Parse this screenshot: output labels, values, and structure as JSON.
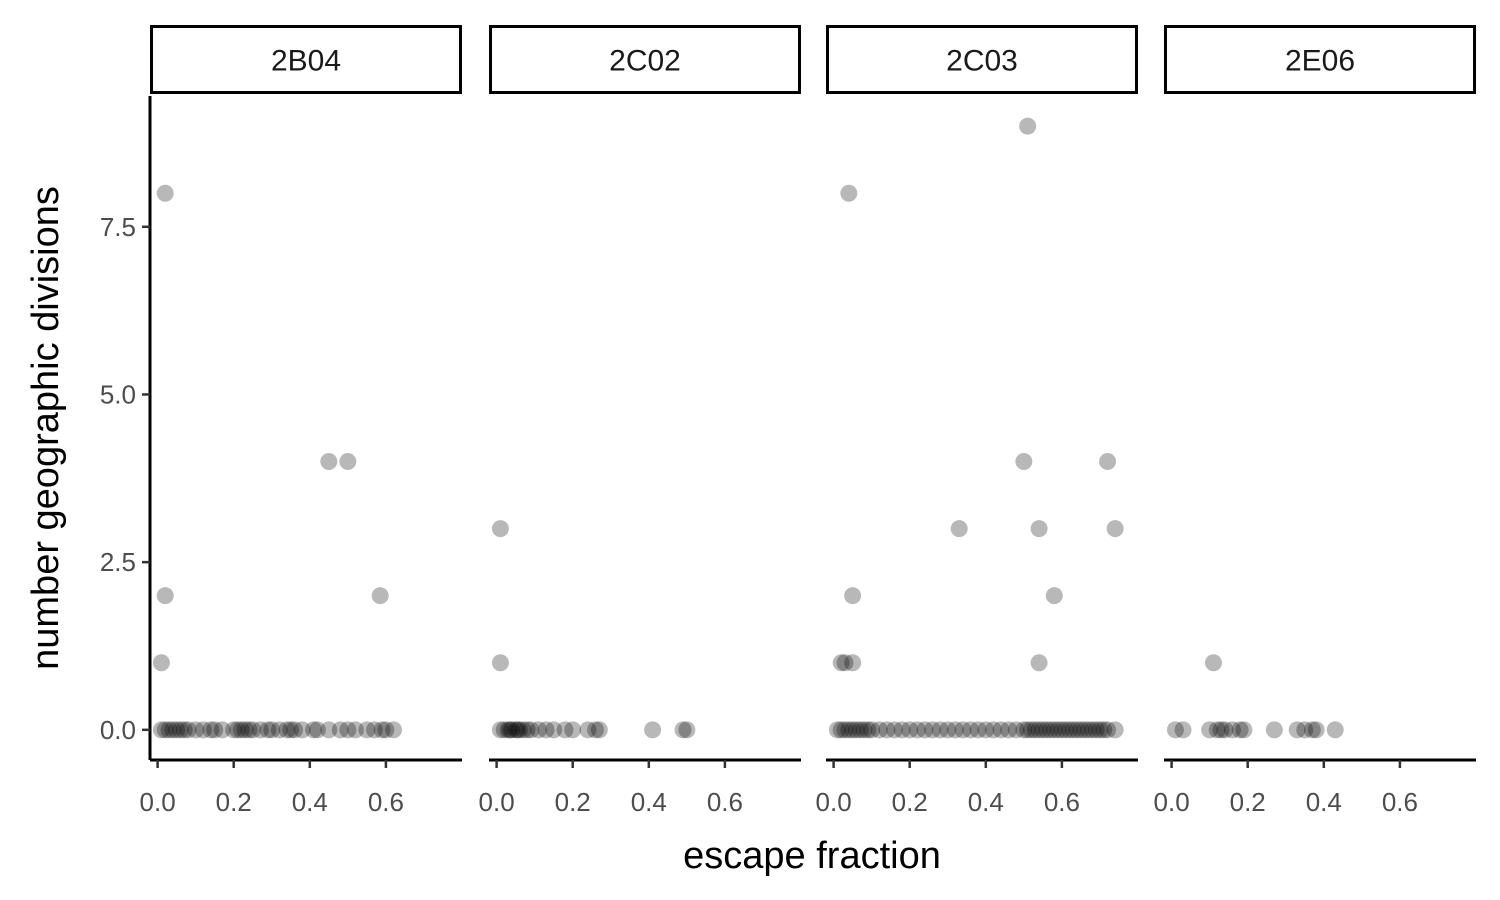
{
  "chart_data": {
    "type": "scatter",
    "xlabel": "escape fraction",
    "ylabel": "number geographic divisions",
    "xlim": [
      -0.02,
      0.8
    ],
    "ylim": [
      -0.45,
      9.45
    ],
    "x_ticks": [
      0.0,
      0.2,
      0.4,
      0.6
    ],
    "x_tick_labels": [
      "0.0",
      "0.2",
      "0.4",
      "0.6"
    ],
    "y_ticks": [
      0.0,
      2.5,
      5.0,
      7.5
    ],
    "y_tick_labels": [
      "0.0",
      "2.5",
      "5.0",
      "7.5"
    ],
    "grid": false,
    "point_color": "#000000",
    "point_opacity": 0.28,
    "strip_fill": "#ffffff",
    "strip_border": "#000000",
    "panels": [
      {
        "name": "2B04",
        "points": [
          [
            0.02,
            8
          ],
          [
            0.45,
            4
          ],
          [
            0.5,
            4
          ],
          [
            0.02,
            2
          ],
          [
            0.585,
            2
          ],
          [
            0.01,
            1
          ],
          [
            0.01,
            0
          ],
          [
            0.02,
            0
          ],
          [
            0.03,
            0
          ],
          [
            0.04,
            0
          ],
          [
            0.05,
            0
          ],
          [
            0.06,
            0
          ],
          [
            0.07,
            0
          ],
          [
            0.08,
            0
          ],
          [
            0.1,
            0
          ],
          [
            0.12,
            0
          ],
          [
            0.14,
            0
          ],
          [
            0.15,
            0
          ],
          [
            0.17,
            0
          ],
          [
            0.2,
            0
          ],
          [
            0.21,
            0
          ],
          [
            0.22,
            0
          ],
          [
            0.23,
            0
          ],
          [
            0.24,
            0
          ],
          [
            0.25,
            0
          ],
          [
            0.27,
            0
          ],
          [
            0.29,
            0
          ],
          [
            0.3,
            0
          ],
          [
            0.32,
            0
          ],
          [
            0.34,
            0
          ],
          [
            0.35,
            0
          ],
          [
            0.36,
            0
          ],
          [
            0.38,
            0
          ],
          [
            0.41,
            0
          ],
          [
            0.42,
            0
          ],
          [
            0.45,
            0
          ],
          [
            0.48,
            0
          ],
          [
            0.5,
            0
          ],
          [
            0.52,
            0
          ],
          [
            0.55,
            0
          ],
          [
            0.57,
            0
          ],
          [
            0.59,
            0
          ],
          [
            0.6,
            0
          ],
          [
            0.62,
            0
          ]
        ]
      },
      {
        "name": "2C02",
        "points": [
          [
            0.01,
            3
          ],
          [
            0.01,
            1
          ],
          [
            0.01,
            0
          ],
          [
            0.02,
            0
          ],
          [
            0.03,
            0
          ],
          [
            0.035,
            0
          ],
          [
            0.04,
            0
          ],
          [
            0.05,
            0
          ],
          [
            0.055,
            0
          ],
          [
            0.06,
            0
          ],
          [
            0.07,
            0
          ],
          [
            0.08,
            0
          ],
          [
            0.09,
            0
          ],
          [
            0.11,
            0
          ],
          [
            0.13,
            0
          ],
          [
            0.15,
            0
          ],
          [
            0.18,
            0
          ],
          [
            0.2,
            0
          ],
          [
            0.24,
            0
          ],
          [
            0.26,
            0
          ],
          [
            0.27,
            0
          ],
          [
            0.41,
            0
          ],
          [
            0.49,
            0
          ],
          [
            0.5,
            0
          ]
        ]
      },
      {
        "name": "2C03",
        "points": [
          [
            0.51,
            9
          ],
          [
            0.04,
            8
          ],
          [
            0.5,
            4
          ],
          [
            0.72,
            4
          ],
          [
            0.33,
            3
          ],
          [
            0.54,
            3
          ],
          [
            0.74,
            3
          ],
          [
            0.05,
            2
          ],
          [
            0.58,
            2
          ],
          [
            0.02,
            1
          ],
          [
            0.03,
            1
          ],
          [
            0.05,
            1
          ],
          [
            0.54,
            1
          ],
          [
            0.01,
            0
          ],
          [
            0.02,
            0
          ],
          [
            0.03,
            0
          ],
          [
            0.04,
            0
          ],
          [
            0.05,
            0
          ],
          [
            0.06,
            0
          ],
          [
            0.07,
            0
          ],
          [
            0.08,
            0
          ],
          [
            0.09,
            0
          ],
          [
            0.1,
            0
          ],
          [
            0.12,
            0
          ],
          [
            0.14,
            0
          ],
          [
            0.16,
            0
          ],
          [
            0.18,
            0
          ],
          [
            0.2,
            0
          ],
          [
            0.22,
            0
          ],
          [
            0.24,
            0
          ],
          [
            0.26,
            0
          ],
          [
            0.28,
            0
          ],
          [
            0.3,
            0
          ],
          [
            0.32,
            0
          ],
          [
            0.34,
            0
          ],
          [
            0.36,
            0
          ],
          [
            0.38,
            0
          ],
          [
            0.4,
            0
          ],
          [
            0.42,
            0
          ],
          [
            0.44,
            0
          ],
          [
            0.46,
            0
          ],
          [
            0.48,
            0
          ],
          [
            0.5,
            0
          ],
          [
            0.51,
            0
          ],
          [
            0.52,
            0
          ],
          [
            0.53,
            0
          ],
          [
            0.54,
            0
          ],
          [
            0.55,
            0
          ],
          [
            0.56,
            0
          ],
          [
            0.57,
            0
          ],
          [
            0.58,
            0
          ],
          [
            0.59,
            0
          ],
          [
            0.6,
            0
          ],
          [
            0.61,
            0
          ],
          [
            0.62,
            0
          ],
          [
            0.63,
            0
          ],
          [
            0.64,
            0
          ],
          [
            0.65,
            0
          ],
          [
            0.66,
            0
          ],
          [
            0.67,
            0
          ],
          [
            0.68,
            0
          ],
          [
            0.69,
            0
          ],
          [
            0.7,
            0
          ],
          [
            0.71,
            0
          ],
          [
            0.72,
            0
          ],
          [
            0.74,
            0
          ]
        ]
      },
      {
        "name": "2E06",
        "points": [
          [
            0.11,
            1
          ],
          [
            0.01,
            0
          ],
          [
            0.03,
            0
          ],
          [
            0.1,
            0
          ],
          [
            0.12,
            0
          ],
          [
            0.13,
            0
          ],
          [
            0.14,
            0
          ],
          [
            0.16,
            0
          ],
          [
            0.18,
            0
          ],
          [
            0.19,
            0
          ],
          [
            0.27,
            0
          ],
          [
            0.33,
            0
          ],
          [
            0.35,
            0
          ],
          [
            0.37,
            0
          ],
          [
            0.38,
            0
          ],
          [
            0.43,
            0
          ]
        ]
      }
    ]
  }
}
